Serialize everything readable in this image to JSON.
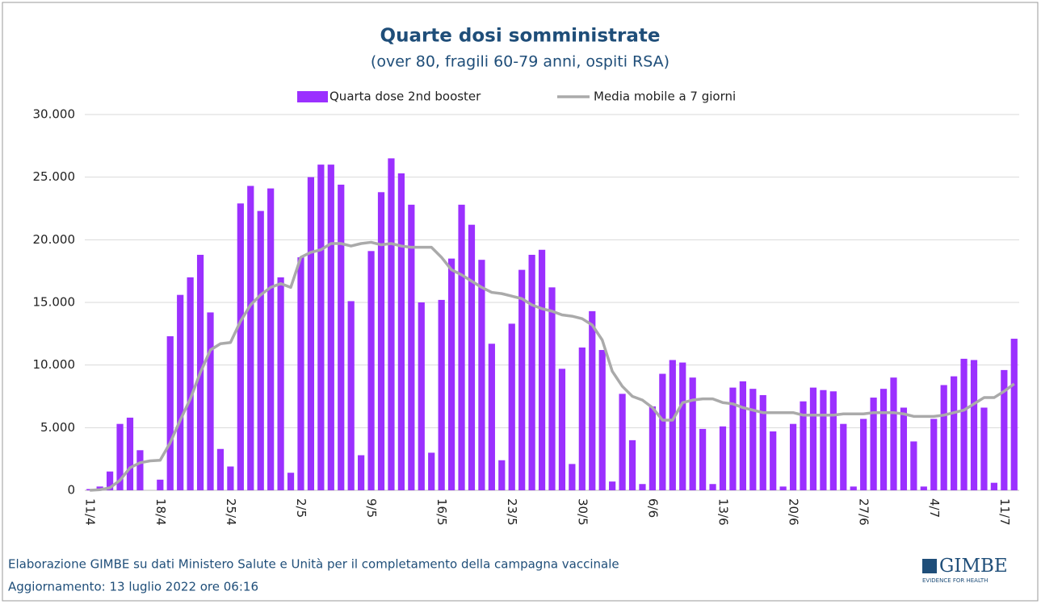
{
  "chart_data": {
    "type": "bar",
    "title": "Quarte dosi somministrate",
    "subtitle": "(over 80, fragili 60-79 anni, ospiti RSA)",
    "categories": [
      "11/4",
      null,
      null,
      null,
      null,
      null,
      null,
      "18/4",
      null,
      null,
      null,
      null,
      null,
      null,
      "25/4",
      null,
      null,
      null,
      null,
      null,
      null,
      "2/5",
      null,
      null,
      null,
      null,
      null,
      null,
      "9/5",
      null,
      null,
      null,
      null,
      null,
      null,
      "16/5",
      null,
      null,
      null,
      null,
      null,
      null,
      "23/5",
      null,
      null,
      null,
      null,
      null,
      null,
      "30/5",
      null,
      null,
      null,
      null,
      null,
      null,
      "6/6",
      null,
      null,
      null,
      null,
      null,
      null,
      "13/6",
      null,
      null,
      null,
      null,
      null,
      null,
      "20/6",
      null,
      null,
      null,
      null,
      null,
      null,
      "27/6",
      null,
      null,
      null,
      null,
      null,
      null,
      "4/7",
      null,
      null,
      null,
      null,
      null,
      null,
      "11/7",
      null
    ],
    "series": [
      {
        "name": "Quarta dose 2nd booster",
        "type": "bar",
        "color": "#9b30ff",
        "values": [
          100,
          300,
          1500,
          5300,
          5800,
          3200,
          0,
          850,
          12300,
          15600,
          17000,
          18800,
          14200,
          3300,
          1900,
          22900,
          24300,
          22300,
          24100,
          17000,
          1400,
          18600,
          25000,
          26000,
          26000,
          24400,
          15100,
          2800,
          19100,
          23800,
          26500,
          25300,
          22800,
          15000,
          3000,
          15200,
          18500,
          22800,
          21200,
          18400,
          11700,
          2400,
          13300,
          17600,
          18800,
          19200,
          16200,
          9700,
          2100,
          11400,
          14300,
          11200,
          700,
          7700,
          4000,
          500,
          6700,
          9300,
          10400,
          10200,
          9000,
          4900,
          500,
          5100,
          8200,
          8700,
          8100,
          7600,
          4700,
          300,
          5300,
          7100,
          8200,
          8000,
          7900,
          5300,
          300,
          5700,
          7400,
          8100,
          9000,
          6600,
          3900,
          300,
          5700,
          8400,
          9100,
          10500,
          10400,
          6600,
          600,
          9600,
          12100
        ]
      },
      {
        "name": "Media mobile a 7 giorni",
        "type": "line",
        "color": "#aaaaaa",
        "values": [
          0,
          50,
          200,
          800,
          1800,
          2200,
          2350,
          2400,
          3800,
          5600,
          7300,
          9400,
          11200,
          11700,
          11800,
          13500,
          14800,
          15600,
          16200,
          16500,
          16200,
          18600,
          19000,
          19200,
          19700,
          19700,
          19500,
          19700,
          19800,
          19600,
          19700,
          19500,
          19400,
          19400,
          19400,
          18600,
          17600,
          17200,
          16700,
          16200,
          15800,
          15700,
          15500,
          15300,
          14800,
          14500,
          14300,
          14000,
          13900,
          13700,
          13200,
          12000,
          9500,
          8300,
          7500,
          7200,
          6600,
          5600,
          5600,
          7000,
          7200,
          7300,
          7300,
          7000,
          6900,
          6600,
          6400,
          6200,
          6200,
          6200,
          6200,
          6000,
          6000,
          6000,
          6000,
          6100,
          6100,
          6100,
          6200,
          6200,
          6200,
          6100,
          5900,
          5900,
          5900,
          6000,
          6200,
          6400,
          6900,
          7400,
          7400,
          7900,
          8500
        ]
      }
    ],
    "ylim": [
      0,
      30000
    ],
    "yticks": [
      0,
      {
        "value": 5000,
        "label": "5.000"
      },
      {
        "value": 10000,
        "label": "10.000"
      },
      {
        "value": 15000,
        "label": "15.000"
      },
      {
        "value": 20000,
        "label": "20.000"
      },
      {
        "value": 25000,
        "label": "25.000"
      },
      {
        "value": 30000,
        "label": "30.000"
      }
    ],
    "grid": true,
    "legend": "top"
  },
  "footer": {
    "source": "Elaborazione GIMBE su dati Ministero Salute e Unità per il completamento della campagna vaccinale",
    "updated": "Aggiornamento: 13 luglio 2022 ore 06:16",
    "logo": "GIMBE",
    "logo_tagline": "EVIDENCE FOR HEALTH"
  }
}
